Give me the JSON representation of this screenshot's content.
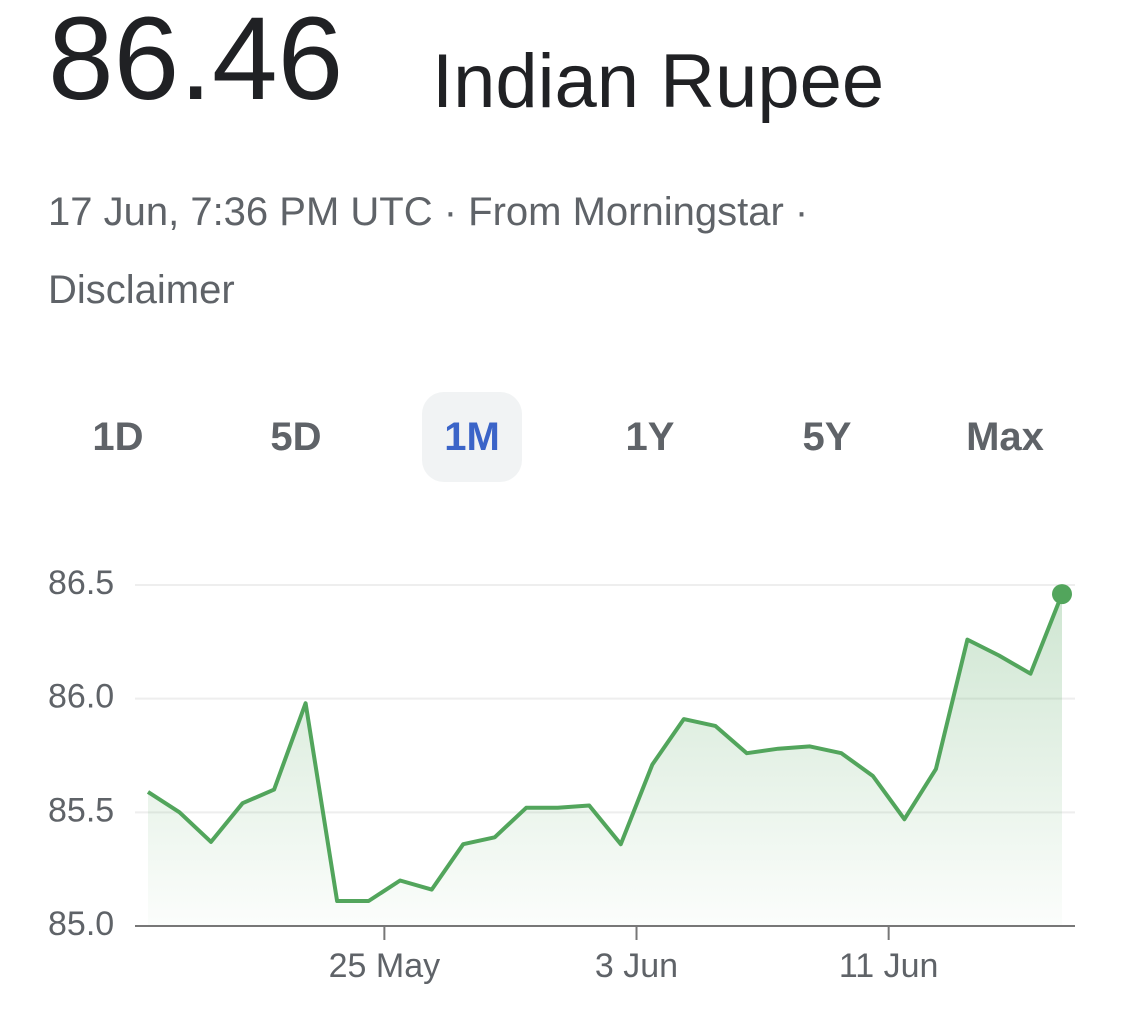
{
  "header": {
    "price": "86.46",
    "currency": "Indian Rupee",
    "meta": "17 Jun, 7:36 PM UTC · From Morningstar ·",
    "disclaimer": "Disclaimer"
  },
  "ranges": {
    "options": [
      "1D",
      "5D",
      "1M",
      "1Y",
      "5Y",
      "Max"
    ],
    "selected": 2
  },
  "chart_data": {
    "type": "line",
    "series": [
      {
        "color": "#52a55c",
        "values": [
          85.59,
          85.5,
          85.37,
          85.54,
          85.6,
          85.98,
          85.11,
          85.11,
          85.2,
          85.16,
          85.36,
          85.39,
          85.52,
          85.52,
          85.53,
          85.36,
          85.71,
          85.91,
          85.88,
          85.76,
          85.78,
          85.79,
          85.76,
          85.66,
          85.47,
          85.69,
          86.26,
          86.19,
          86.11,
          86.46
        ]
      }
    ],
    "xlim": [
      0,
      29
    ],
    "xticks": [
      {
        "value": 7.5,
        "label": "25 May"
      },
      {
        "value": 15.5,
        "label": "3 Jun"
      },
      {
        "value": 23.5,
        "label": "11 Jun"
      }
    ],
    "ylim": [
      85.0,
      86.5
    ],
    "yticks": [
      {
        "value": 85,
        "label": "85.0"
      },
      85.5,
      {
        "value": 86,
        "label": "86.0"
      },
      86.5
    ],
    "grid": true
  }
}
